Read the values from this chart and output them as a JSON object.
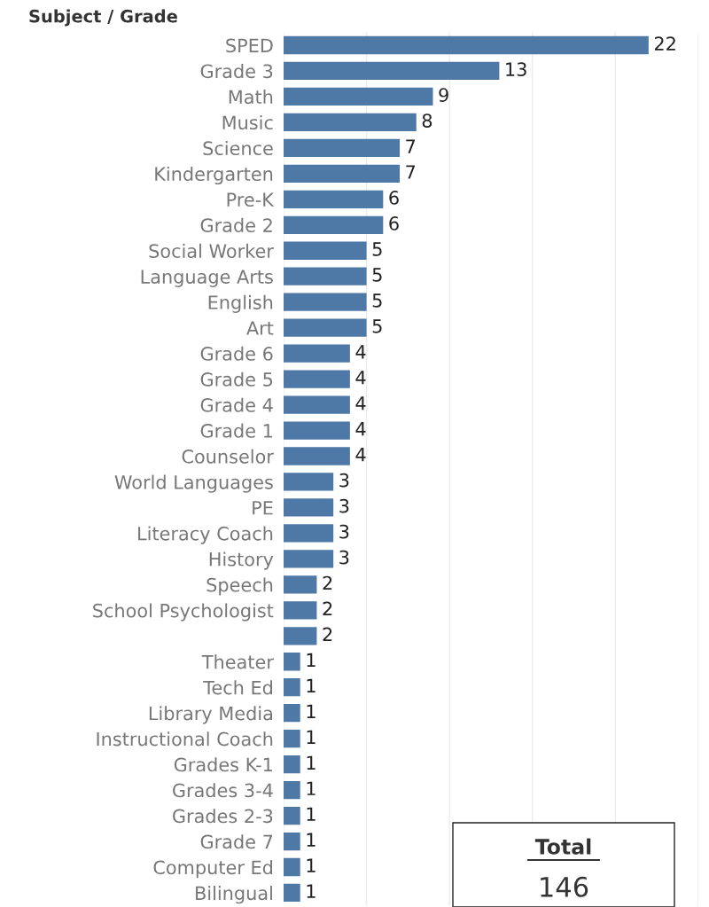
{
  "chart_data": {
    "type": "bar",
    "orientation": "horizontal",
    "ylabel": "Subject / Grade",
    "categories": [
      "SPED",
      "Grade 3",
      "Math",
      "Music",
      "Science",
      "Kindergarten",
      "Pre-K",
      "Grade 2",
      "Social Worker",
      "Language Arts",
      "English",
      "Art",
      "Grade 6",
      "Grade 5",
      "Grade 4",
      "Grade 1",
      "Counselor",
      "World Languages",
      "PE",
      "Literacy Coach",
      "History",
      "Speech",
      "School Psychologist",
      null,
      "Theater",
      "Tech Ed",
      "Library Media",
      "Instructional Coach",
      "Grades K-1",
      "Grades 3-4",
      "Grades 2-3",
      "Grade 7",
      "Computer Ed",
      "Bilingual"
    ],
    "values": [
      22,
      13,
      9,
      8,
      7,
      7,
      6,
      6,
      5,
      5,
      5,
      5,
      4,
      4,
      4,
      4,
      4,
      3,
      3,
      3,
      3,
      2,
      2,
      2,
      1,
      1,
      1,
      1,
      1,
      1,
      1,
      1,
      1,
      1
    ],
    "color": "#4e79a7",
    "data_labels": true,
    "xlim": [
      0,
      25
    ],
    "xticks": [
      0,
      5,
      10,
      15,
      20,
      25
    ],
    "tick_labels": "y",
    "grid": "x",
    "annotations": [
      "Total",
      "146"
    ]
  }
}
